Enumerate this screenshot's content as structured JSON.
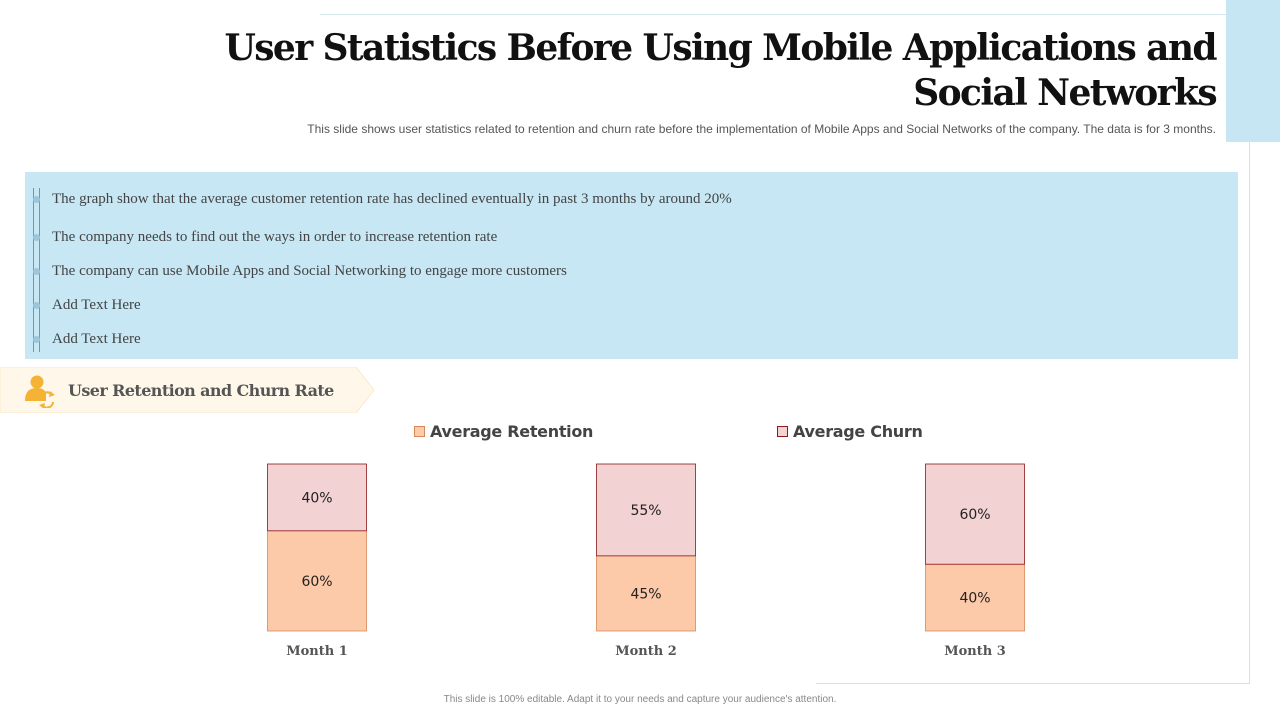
{
  "title": "User Statistics Before Using Mobile Applications and Social Networks",
  "title_lines": [
    "User Statistics Before Using Mobile Applications and",
    "Social Networks"
  ],
  "subtitle": "This slide shows user statistics related to retention and churn rate before the implementation of Mobile Apps and Social Networks of the company. The data is for 3 months.",
  "bullets": [
    "The graph show that the average customer retention rate has declined eventually in past 3 months by around 20%",
    "The company needs to find out the ways in order to increase retention rate",
    "The company can use Mobile Apps and Social Networking to engage more customers",
    "Add Text Here",
    "Add Text Here"
  ],
  "section": {
    "label": "User Retention and Churn Rate",
    "icon": "user-refresh-icon"
  },
  "footer": "This slide is 100% editable. Adapt it to your needs and capture your audience's attention.",
  "colors": {
    "retention_fill": "#fdcaa9",
    "retention_stroke": "#d9875a",
    "churn_fill": "#f2d2d2",
    "churn_stroke": "#8b1a1a",
    "info_box": "#c7e7f4",
    "accent_orange": "#f5b335"
  },
  "chart_data": {
    "type": "bar",
    "stacked": true,
    "percent_stacked": true,
    "categories": [
      "Month 1",
      "Month 2",
      "Month 3"
    ],
    "series": [
      {
        "name": "Average Retention",
        "values": [
          60,
          45,
          40
        ],
        "labels": [
          "60%",
          "45%",
          "40%"
        ]
      },
      {
        "name": "Average Churn",
        "values": [
          40,
          55,
          60
        ],
        "labels": [
          "40%",
          "55%",
          "60%"
        ]
      }
    ],
    "ylim": [
      0,
      100
    ],
    "grid": false,
    "legend": "top"
  }
}
